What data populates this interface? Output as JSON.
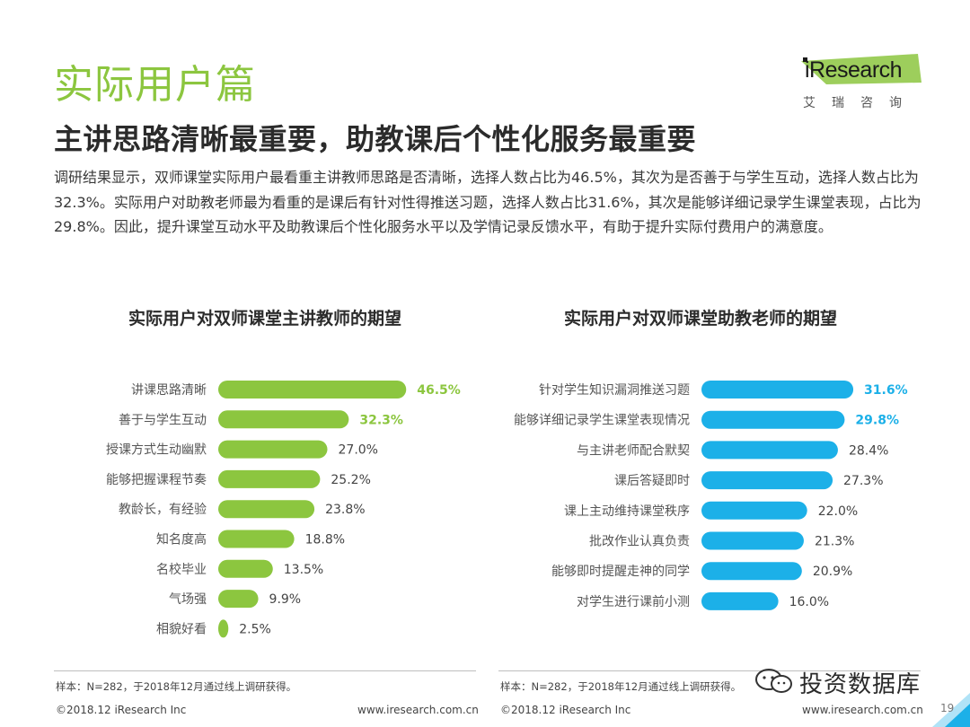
{
  "section_title": "实际用户篇",
  "logo": {
    "wordmark": "iResearch",
    "chinese": "艾瑞咨询"
  },
  "headline": "主讲思路清晰最重要，助教课后个性化服务最重要",
  "summary": "调研结果显示，双师课堂实际用户最看重主讲教师思路是否清晰，选择人数占比为46.5%，其次为是否善于与学生互动，选择人数占比为32.3%。实际用户对助教老师最为看重的是课后有针对性得推送习题，选择人数占比31.6%，其次是能够详细记录学生课堂表现，占比为29.8%。因此，提升课堂互动水平及助教课后个性化服务水平以及学情记录反馈水平，有助于提升实际付费用户的满意度。",
  "colors": {
    "green": "#8cc63f",
    "blue": "#1cb0e8"
  },
  "chart_data": [
    {
      "type": "bar",
      "orientation": "horizontal",
      "title": "实际用户对双师课堂主讲教师的期望",
      "categories": [
        "讲课思路清晰",
        "善于与学生互动",
        "授课方式生动幽默",
        "能够把握课程节奏",
        "教龄长，有经验",
        "知名度高",
        "名校毕业",
        "气场强",
        "相貌好看"
      ],
      "values": [
        46.5,
        32.3,
        27.0,
        25.2,
        23.8,
        18.8,
        13.5,
        9.9,
        2.5
      ],
      "value_labels": [
        "46.5%",
        "32.3%",
        "27.0%",
        "25.2%",
        "23.8%",
        "18.8%",
        "13.5%",
        "9.9%",
        "2.5%"
      ],
      "unit": "%",
      "color": "#8cc63f",
      "highlight_color": "#8cc63f",
      "highlighted": [
        0,
        1
      ]
    },
    {
      "type": "bar",
      "orientation": "horizontal",
      "title": "实际用户对双师课堂助教老师的期望",
      "categories": [
        "针对学生知识漏洞推送习题",
        "能够详细记录学生课堂表现情况",
        "与主讲老师配合默契",
        "课后答疑即时",
        "课上主动维持课堂秩序",
        "批改作业认真负责",
        "能够即时提醒走神的同学",
        "对学生进行课前小测"
      ],
      "values": [
        31.6,
        29.8,
        28.4,
        27.3,
        22.0,
        21.3,
        20.9,
        16.0
      ],
      "value_labels": [
        "31.6%",
        "29.8%",
        "28.4%",
        "27.3%",
        "22.0%",
        "21.3%",
        "20.9%",
        "16.0%"
      ],
      "unit": "%",
      "color": "#1cb0e8",
      "highlight_color": "#1cb0e8",
      "highlighted": [
        0,
        1
      ]
    }
  ],
  "footer": {
    "sample_left": "样本：N=282，于2018年12月通过线上调研获得。",
    "sample_right": "样本：N=282，于2018年12月通过线上调研获得。",
    "copyright_left": "©2018.12 iResearch Inc",
    "copyright_right": "©2018.12 iResearch Inc",
    "site_left": "www.iresearch.com.cn",
    "site_right": "www.iresearch.com.cn",
    "page": "19"
  },
  "wechat": {
    "icon": "wechat-icon",
    "name": "投资数据库"
  }
}
